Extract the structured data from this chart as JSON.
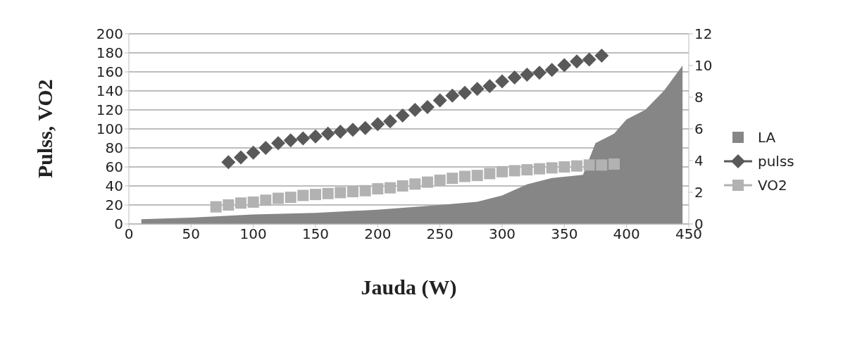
{
  "chart_data": {
    "type": "scatter",
    "xlabel": "Jauda (W)",
    "ylabel": "Pulss, VO2",
    "xlim": [
      0,
      450
    ],
    "xticks": [
      0,
      50,
      100,
      150,
      200,
      250,
      300,
      350,
      400,
      450
    ],
    "ylim": [
      0,
      200
    ],
    "yticks": [
      0,
      20,
      40,
      60,
      80,
      100,
      120,
      140,
      160,
      180,
      200
    ],
    "y2lim": [
      0,
      12
    ],
    "y2ticks": [
      0,
      2,
      4,
      6,
      8,
      10,
      12
    ],
    "grid": "y",
    "legend": "right",
    "series": [
      {
        "name": "LA",
        "type": "area",
        "axis": "y2",
        "color": "#868686",
        "x": [
          10,
          50,
          100,
          150,
          200,
          250,
          280,
          300,
          320,
          340,
          365,
          375,
          390,
          400,
          415,
          430,
          445
        ],
        "values": [
          0.3,
          0.4,
          0.6,
          0.7,
          0.9,
          1.2,
          1.4,
          1.8,
          2.5,
          2.9,
          3.1,
          5.1,
          5.7,
          6.6,
          7.2,
          8.4,
          10
        ]
      },
      {
        "name": "pulss",
        "marker": "diamond",
        "color": "#595959",
        "x": [
          80,
          90,
          100,
          110,
          120,
          130,
          140,
          150,
          160,
          170,
          180,
          190,
          200,
          210,
          220,
          230,
          240,
          250,
          260,
          270,
          280,
          290,
          300,
          310,
          320,
          330,
          340,
          350,
          360,
          370,
          380
        ],
        "values": [
          65,
          70,
          75,
          80,
          85,
          88,
          90,
          92,
          95,
          97,
          99,
          101,
          105,
          108,
          114,
          120,
          123,
          130,
          135,
          138,
          142,
          145,
          150,
          154,
          157,
          159,
          162,
          167,
          171,
          173,
          177
        ]
      },
      {
        "name": "VO2",
        "marker": "square",
        "color": "#b2b2b2",
        "x": [
          70,
          80,
          90,
          100,
          110,
          120,
          130,
          140,
          150,
          160,
          170,
          180,
          190,
          200,
          210,
          220,
          230,
          240,
          250,
          260,
          270,
          280,
          290,
          300,
          310,
          320,
          330,
          340,
          350,
          360,
          370,
          380,
          390
        ],
        "values": [
          18,
          20,
          22,
          23,
          25,
          27,
          28,
          30,
          31,
          32,
          33,
          34,
          35,
          37,
          38,
          40,
          42,
          44,
          46,
          48,
          50,
          51,
          53,
          55,
          56,
          57,
          58,
          59,
          60,
          61,
          62,
          62,
          63
        ]
      }
    ]
  }
}
